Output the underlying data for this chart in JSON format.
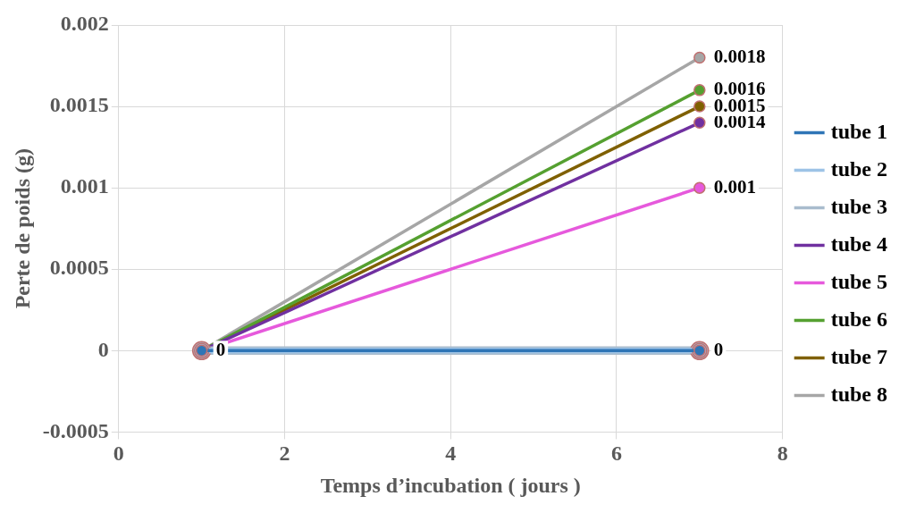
{
  "chart_data": {
    "type": "line",
    "xlabel": "Temps d’incubation ( jours )",
    "ylabel": "Perte de poids (g)",
    "x": [
      1,
      7
    ],
    "series": [
      {
        "name": "tube 1",
        "color": "#2e75b6",
        "values": [
          0,
          0
        ],
        "value_labels": [
          "0",
          "0"
        ]
      },
      {
        "name": "tube 2",
        "color": "#9dc3e6",
        "values": [
          0,
          0
        ],
        "value_labels": [
          null,
          null
        ]
      },
      {
        "name": "tube 3",
        "color": "#a9bccd",
        "values": [
          0,
          0
        ],
        "value_labels": [
          null,
          null
        ]
      },
      {
        "name": "tube 4",
        "color": "#7030a0",
        "values": [
          0,
          0.0014
        ],
        "value_labels": [
          null,
          "0.0014"
        ]
      },
      {
        "name": "tube 5",
        "color": "#e659dc",
        "values": [
          0,
          0.001
        ],
        "value_labels": [
          null,
          "0.001"
        ]
      },
      {
        "name": "tube 6",
        "color": "#55a030",
        "values": [
          0,
          0.0016
        ],
        "value_labels": [
          null,
          "0.0016"
        ]
      },
      {
        "name": "tube 7",
        "color": "#7f6000",
        "values": [
          0,
          0.0015
        ],
        "value_labels": [
          null,
          "0.0015"
        ]
      },
      {
        "name": "tube 8",
        "color": "#a6a6a6",
        "values": [
          0,
          0.0018
        ],
        "value_labels": [
          null,
          "0.0018"
        ]
      }
    ],
    "xlim": [
      0,
      8
    ],
    "xticks": [
      0,
      2,
      4,
      6,
      8
    ],
    "ylim": [
      -0.0005,
      0.002
    ],
    "yticks": [
      -0.0005,
      0,
      0.0005,
      0.001,
      0.0015,
      0.002
    ],
    "grid": true,
    "legend": "right",
    "marker": "circle",
    "line_style": "solid"
  }
}
